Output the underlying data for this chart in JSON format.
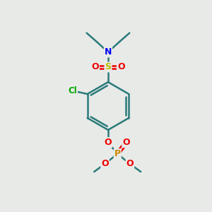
{
  "background_color": "#e8eae8",
  "atom_colors": {
    "C": "#000000",
    "N": "#0000ee",
    "S": "#bbbb00",
    "O": "#ee0000",
    "Cl": "#00aa00",
    "P": "#cc8800"
  },
  "bond_color": "#2a7a7a",
  "bond_width": 1.8,
  "ring_bond_color": "#2a7a7a",
  "figsize": [
    3.0,
    3.0
  ],
  "dpi": 100
}
